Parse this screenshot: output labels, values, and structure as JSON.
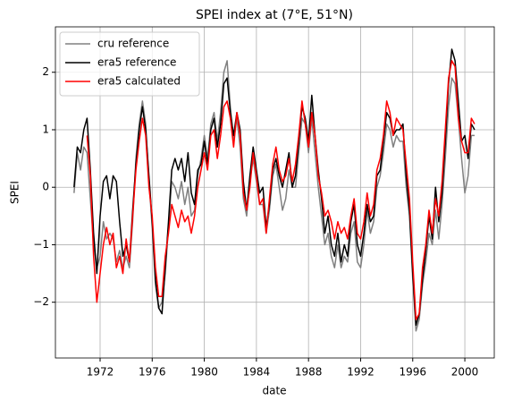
{
  "chart_data": {
    "type": "line",
    "title": "SPEI index at (7°E, 51°N)",
    "xlabel": "date",
    "ylabel": "SPEI",
    "x": [
      1970,
      1970.25,
      1970.5,
      1970.75,
      1971,
      1971.25,
      1971.5,
      1971.75,
      1972,
      1972.25,
      1972.5,
      1972.75,
      1973,
      1973.25,
      1973.5,
      1973.75,
      1974,
      1974.25,
      1974.5,
      1974.75,
      1975,
      1975.25,
      1975.5,
      1975.75,
      1976,
      1976.25,
      1976.5,
      1976.75,
      1977,
      1977.25,
      1977.5,
      1977.75,
      1978,
      1978.25,
      1978.5,
      1978.75,
      1979,
      1979.25,
      1979.5,
      1979.75,
      1980,
      1980.25,
      1980.5,
      1980.75,
      1981,
      1981.25,
      1981.5,
      1981.75,
      1982,
      1982.25,
      1982.5,
      1982.75,
      1983,
      1983.25,
      1983.5,
      1983.75,
      1984,
      1984.25,
      1984.5,
      1984.75,
      1985,
      1985.25,
      1985.5,
      1985.75,
      1986,
      1986.25,
      1986.5,
      1986.75,
      1987,
      1987.25,
      1987.5,
      1987.75,
      1988,
      1988.25,
      1988.5,
      1988.75,
      1989,
      1989.25,
      1989.5,
      1989.75,
      1990,
      1990.25,
      1990.5,
      1990.75,
      1991,
      1991.25,
      1991.5,
      1991.75,
      1992,
      1992.25,
      1992.5,
      1992.75,
      1993,
      1993.25,
      1993.5,
      1993.75,
      1994,
      1994.25,
      1994.5,
      1994.75,
      1995,
      1995.25,
      1995.5,
      1995.75,
      1996,
      1996.25,
      1996.5,
      1996.75,
      1997,
      1997.25,
      1997.5,
      1997.75,
      1998,
      1998.25,
      1998.5,
      1998.75,
      1999,
      1999.25,
      1999.5,
      1999.75,
      2000,
      2000.25,
      2000.5,
      2000.75
    ],
    "series": [
      {
        "name": "cru reference",
        "color": "#808080",
        "values": [
          -0.1,
          0.6,
          0.3,
          0.7,
          0.6,
          -0.2,
          -1.0,
          -1.4,
          -1.2,
          -0.6,
          -0.9,
          -0.8,
          -0.9,
          -1.3,
          -1.1,
          -1.4,
          -1.2,
          -1.4,
          -0.6,
          0.5,
          1.1,
          1.5,
          1.1,
          0.1,
          -0.7,
          -1.7,
          -2.1,
          -2.0,
          -1.5,
          -0.7,
          0.1,
          0.0,
          -0.2,
          0.1,
          -0.3,
          0.0,
          -0.5,
          -0.4,
          0.2,
          0.5,
          0.9,
          0.5,
          1.1,
          1.3,
          0.8,
          1.3,
          2.0,
          2.2,
          1.4,
          0.8,
          1.2,
          0.7,
          -0.2,
          -0.5,
          0.1,
          0.5,
          0.1,
          -0.3,
          -0.3,
          -0.8,
          -0.4,
          0.2,
          0.4,
          0.0,
          -0.4,
          -0.2,
          0.3,
          0.0,
          0.0,
          0.6,
          1.2,
          1.1,
          0.6,
          1.2,
          0.6,
          0.0,
          -0.5,
          -1.0,
          -0.8,
          -1.2,
          -1.4,
          -1.0,
          -1.4,
          -1.2,
          -1.3,
          -0.8,
          -0.6,
          -1.3,
          -1.4,
          -1.0,
          -0.4,
          -0.8,
          -0.6,
          0.0,
          0.2,
          0.6,
          1.1,
          1.0,
          0.7,
          0.9,
          0.8,
          0.8,
          0.0,
          -0.5,
          -1.6,
          -2.5,
          -2.3,
          -1.7,
          -1.3,
          -0.8,
          -1.0,
          -0.4,
          -0.9,
          -0.3,
          0.5,
          1.4,
          1.9,
          1.8,
          1.2,
          0.5,
          -0.1,
          0.2,
          0.9,
          0.9
        ]
      },
      {
        "name": "era5 reference",
        "color": "#000000",
        "values": [
          0,
          0.7,
          0.6,
          1.0,
          1.2,
          0.3,
          -0.8,
          -1.5,
          -0.5,
          0.1,
          0.2,
          -0.2,
          0.2,
          0.1,
          -0.6,
          -1.2,
          -1.0,
          -1.3,
          -0.4,
          0.4,
          1.0,
          1.4,
          1.0,
          0.2,
          -0.6,
          -1.6,
          -2.1,
          -2.2,
          -1.4,
          -0.6,
          0.3,
          0.5,
          0.3,
          0.5,
          0.1,
          0.6,
          -0.1,
          -0.3,
          0.3,
          0.4,
          0.8,
          0.4,
          1.0,
          1.2,
          0.7,
          1.1,
          1.8,
          1.9,
          1.3,
          0.9,
          1.3,
          1.0,
          0.1,
          -0.4,
          0.2,
          0.7,
          0.3,
          -0.1,
          0.0,
          -0.7,
          -0.3,
          0.3,
          0.5,
          0.2,
          0.0,
          0.3,
          0.6,
          0.0,
          0.2,
          0.8,
          1.4,
          1.2,
          0.8,
          1.6,
          0.9,
          0.3,
          -0.2,
          -0.8,
          -0.5,
          -1.0,
          -1.2,
          -0.8,
          -1.3,
          -1.0,
          -1.2,
          -0.6,
          -0.3,
          -1.0,
          -1.2,
          -0.8,
          -0.3,
          -0.6,
          -0.5,
          0.2,
          0.3,
          0.8,
          1.3,
          1.2,
          0.9,
          1.0,
          1.0,
          1.1,
          0.2,
          -0.4,
          -1.5,
          -2.4,
          -2.2,
          -1.6,
          -1.1,
          -0.5,
          -0.9,
          0.0,
          -0.6,
          -0.1,
          0.8,
          1.8,
          2.4,
          2.2,
          1.5,
          0.8,
          0.9,
          0.5,
          1.1,
          1.0
        ]
      },
      {
        "name": "era5 calculated",
        "color": "#ff0000",
        "values": [
          null,
          null,
          null,
          null,
          0.9,
          0.2,
          -1.2,
          -2.0,
          -1.5,
          -1.0,
          -0.7,
          -1.0,
          -0.8,
          -1.4,
          -1.2,
          -1.5,
          -0.9,
          -1.3,
          -0.5,
          0.3,
          0.8,
          1.2,
          0.9,
          0.0,
          -0.5,
          -1.4,
          -1.9,
          -1.9,
          -1.2,
          -0.8,
          -0.3,
          -0.5,
          -0.7,
          -0.4,
          -0.6,
          -0.5,
          -0.8,
          -0.5,
          0.0,
          0.3,
          0.6,
          0.3,
          0.9,
          1.0,
          0.5,
          0.9,
          1.4,
          1.5,
          1.2,
          0.7,
          1.3,
          0.9,
          -0.1,
          -0.4,
          0.0,
          0.6,
          0.2,
          -0.3,
          -0.2,
          -0.8,
          -0.2,
          0.4,
          0.7,
          0.3,
          0.1,
          0.2,
          0.5,
          0.1,
          0.4,
          0.9,
          1.5,
          1.1,
          0.7,
          1.3,
          0.9,
          0.2,
          -0.1,
          -0.5,
          -0.4,
          -0.6,
          -0.9,
          -0.6,
          -0.8,
          -0.7,
          -0.9,
          -0.5,
          -0.2,
          -0.8,
          -0.9,
          -0.6,
          -0.1,
          -0.5,
          -0.3,
          0.3,
          0.5,
          0.9,
          1.5,
          1.3,
          0.9,
          1.2,
          1.1,
          1.0,
          0.4,
          -0.2,
          -1.3,
          -2.3,
          -2.2,
          -1.4,
          -1.0,
          -0.4,
          -0.8,
          -0.2,
          -0.5,
          0.1,
          1.0,
          1.9,
          2.2,
          2.1,
          1.2,
          0.8,
          0.6,
          0.6,
          1.2,
          1.1
        ]
      }
    ],
    "xlim": [
      1968.57,
      2002.26
    ],
    "xticks": [
      1972,
      1976,
      1980,
      1984,
      1988,
      1992,
      1996,
      2000
    ],
    "ylim": [
      -2.97,
      2.79
    ],
    "yticks": [
      {
        "value": -2,
        "label": "−2"
      },
      {
        "value": -1,
        "label": "−1"
      },
      0,
      1,
      2
    ],
    "grid": true,
    "legend": "upper left"
  }
}
